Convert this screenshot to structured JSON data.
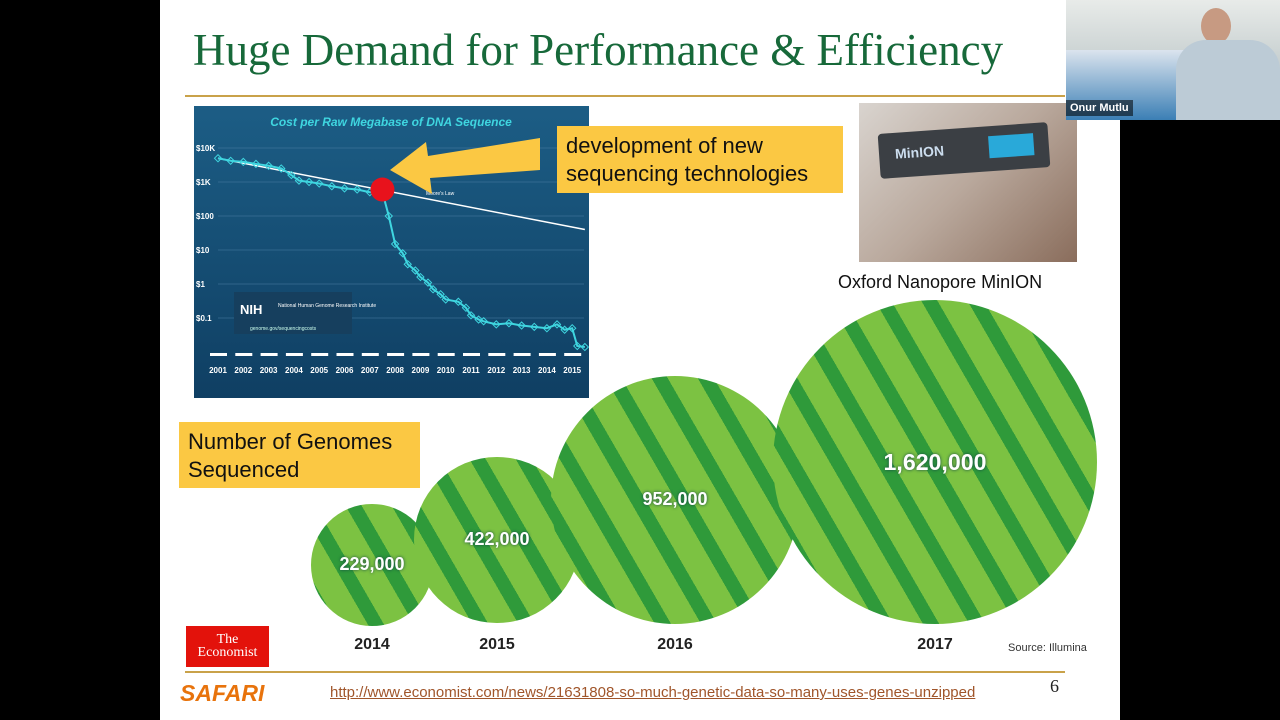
{
  "slide": {
    "title": "Huge Demand for Performance & Efficiency",
    "callout_sequencing": "development of new sequencing technologies",
    "minion_caption": "Oxford Nanopore MinION",
    "minion_device_label": "MinION",
    "genomes_label": "Number of Genomes Sequenced",
    "source": "Source: Illumina",
    "economist_logo": "The Economist",
    "safari_logo": "SAFARI",
    "url": "http://www.economist.com/news/21631808-so-much-genetic-data-so-many-uses-genes-unzipped",
    "page_number": "6"
  },
  "webcam": {
    "participant_name": "Onur Mutlu"
  },
  "chart_data": [
    {
      "type": "line",
      "title": "Cost per Raw Megabase of DNA Sequence",
      "yscale": "log",
      "ylim": [
        0.01,
        10000
      ],
      "yticks": [
        "$10K",
        "$1K",
        "$100",
        "$10",
        "$1",
        "$0.1"
      ],
      "xticks": [
        "2001",
        "2002",
        "2003",
        "2004",
        "2005",
        "2006",
        "2007",
        "2008",
        "2009",
        "2010",
        "2011",
        "2012",
        "2013",
        "2014",
        "2015"
      ],
      "annotation": "Moore's Law",
      "logo_text": "National Human Genome Research Institute",
      "logo_abbrev": "NIH",
      "logo_url": "genome.gov/sequencingcosts",
      "series": [
        {
          "x": [
            2001,
            2001.5,
            2002,
            2002.5,
            2003,
            2003.5,
            2003.9,
            2004.2,
            2004.6,
            2005,
            2005.5,
            2006,
            2006.5,
            2007,
            2007.5,
            2007.75,
            2008,
            2008.3,
            2008.5,
            2008.8,
            2009,
            2009.3,
            2009.5,
            2009.8,
            2010,
            2010.5,
            2010.8,
            2011,
            2011.3,
            2011.5,
            2012,
            2012.5,
            2013,
            2013.5,
            2014,
            2014.4,
            2014.7,
            2015,
            2015.2,
            2015.5
          ],
          "y": [
            5000,
            4200,
            3900,
            3400,
            3000,
            2500,
            1600,
            1100,
            1000,
            900,
            750,
            650,
            600,
            500,
            500,
            100,
            15,
            8,
            3.8,
            2.5,
            1.6,
            1.1,
            0.7,
            0.5,
            0.35,
            0.3,
            0.2,
            0.12,
            0.09,
            0.08,
            0.065,
            0.07,
            0.06,
            0.055,
            0.05,
            0.065,
            0.045,
            0.05,
            0.015,
            0.014
          ]
        },
        {
          "name": "Moore's Law",
          "x": [
            2001,
            2015.5
          ],
          "y": [
            5000,
            40
          ]
        }
      ]
    },
    {
      "type": "bubble",
      "categories": [
        "2014",
        "2015",
        "2016",
        "2017"
      ],
      "values": [
        229000,
        422000,
        952000,
        1620000
      ],
      "labels": [
        "229,000",
        "422,000",
        "952,000",
        "1,620,000"
      ]
    }
  ]
}
